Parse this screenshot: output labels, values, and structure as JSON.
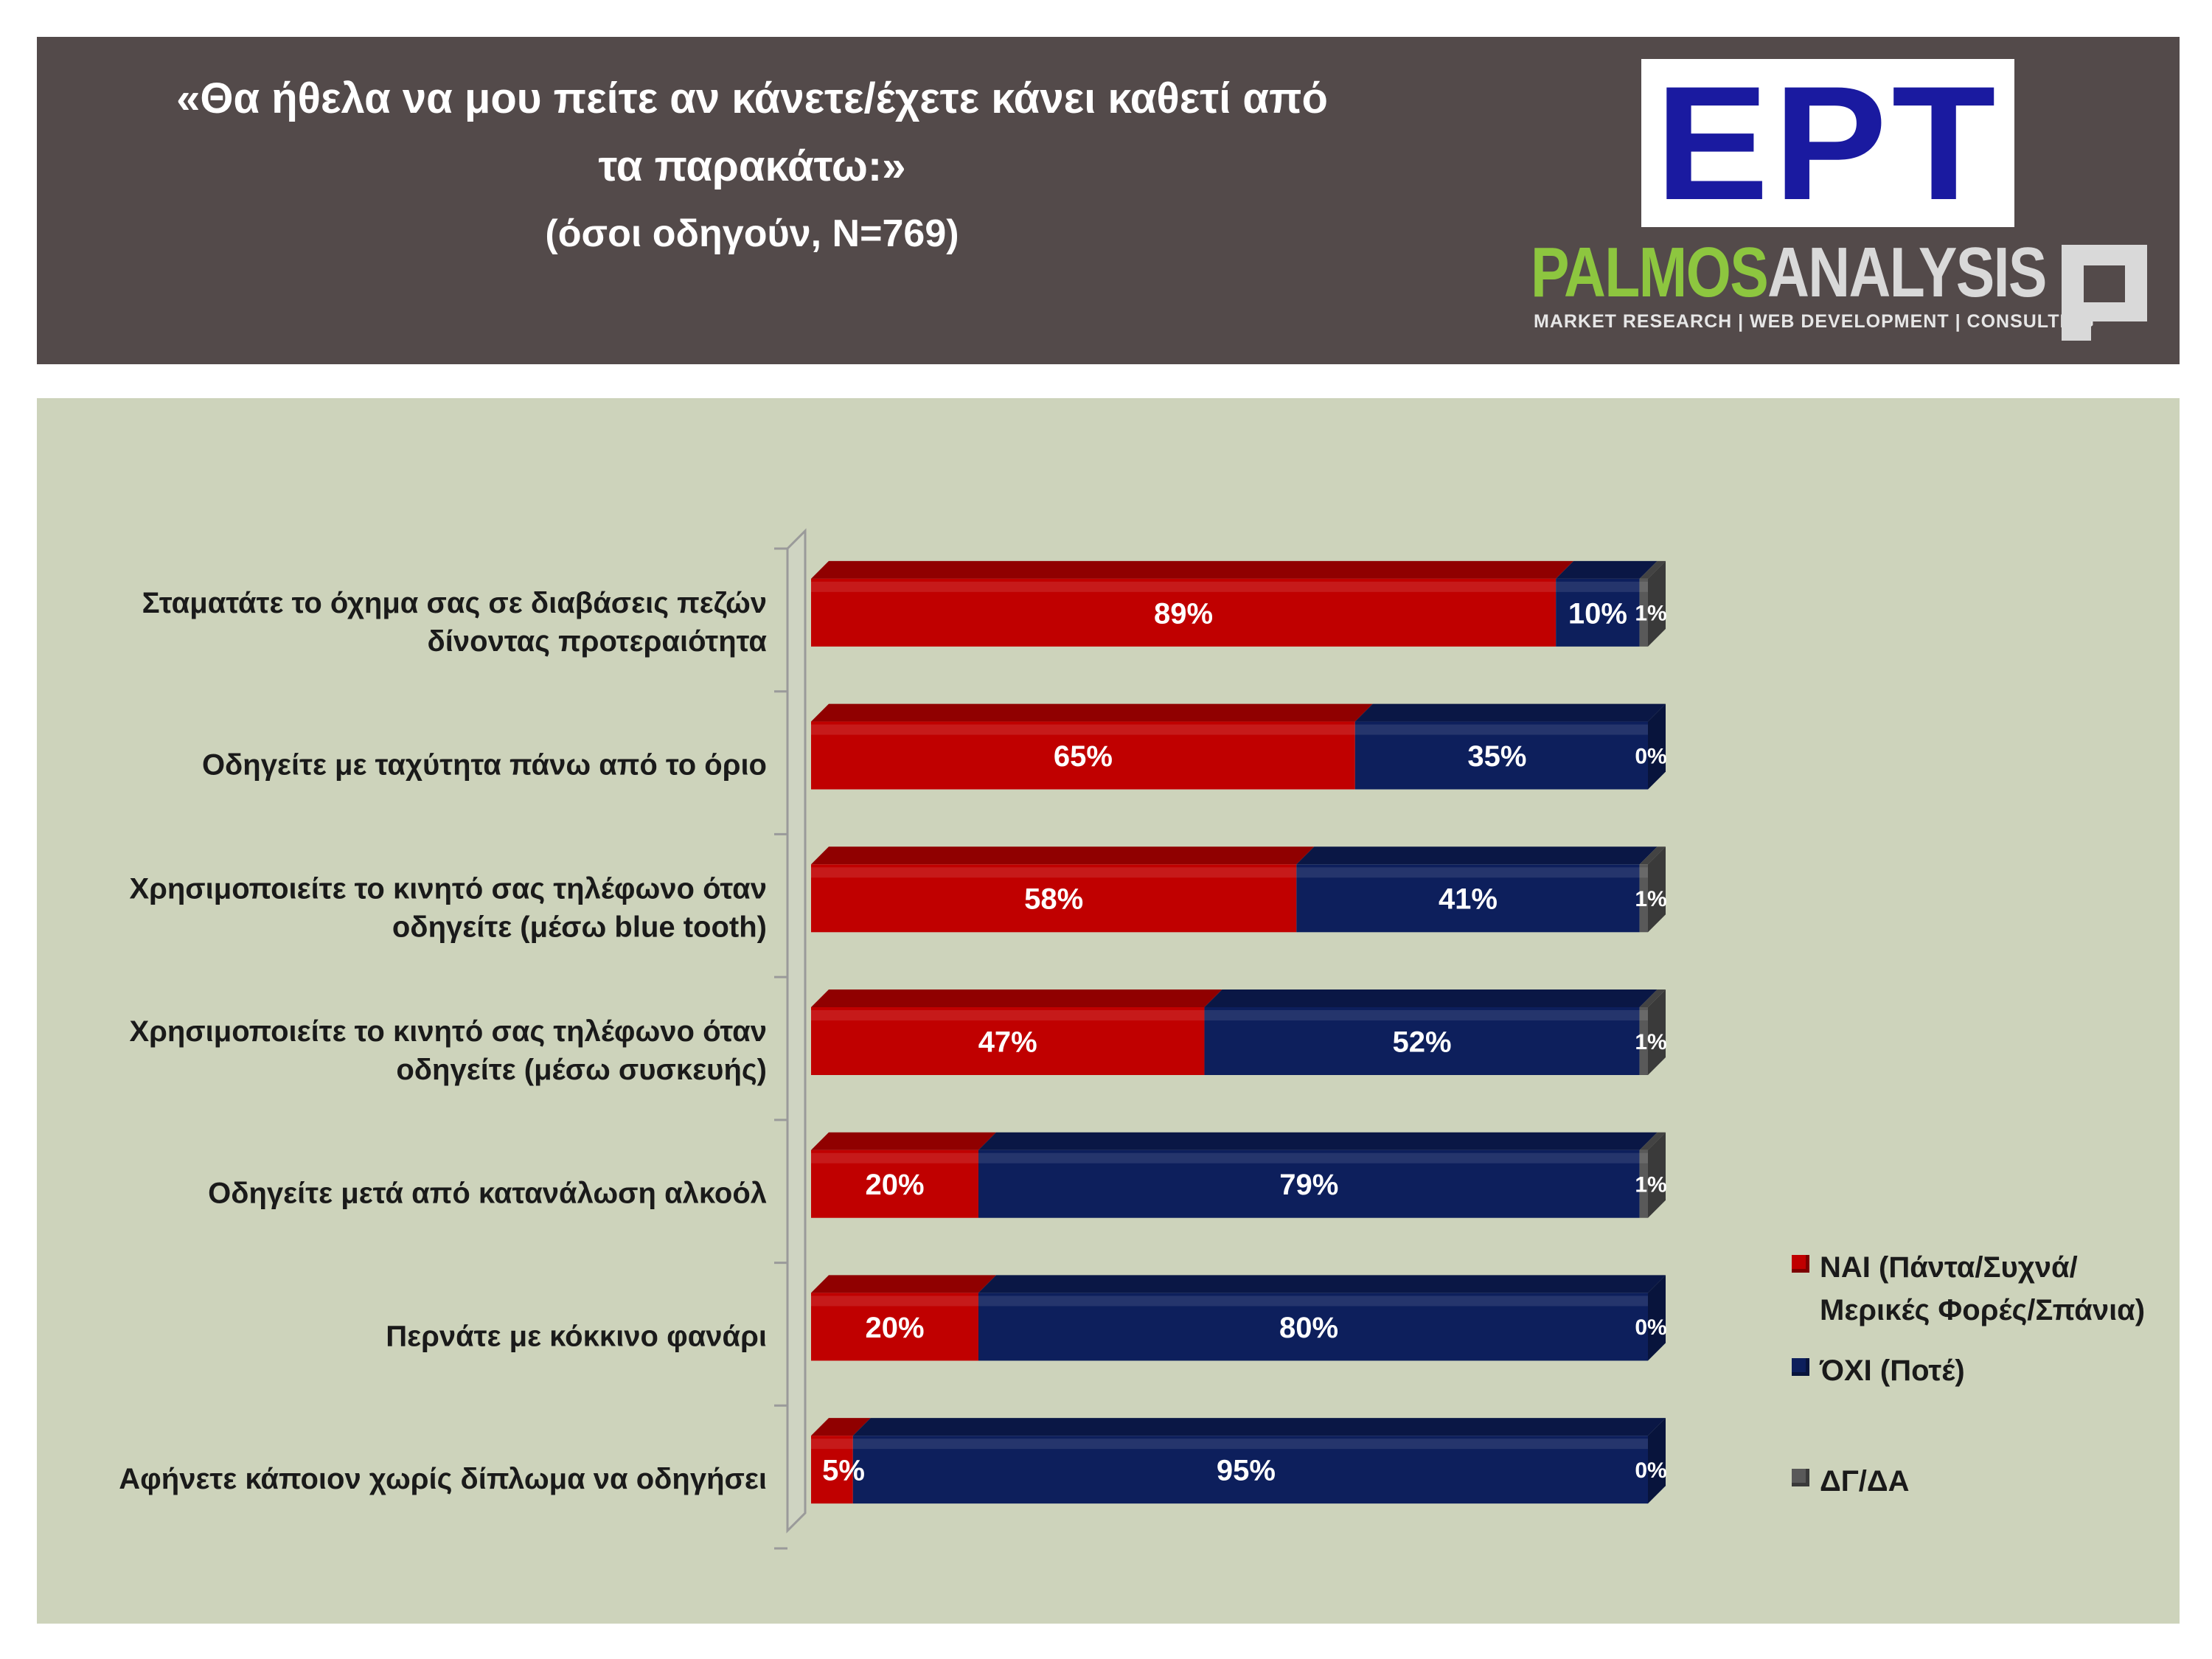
{
  "header": {
    "title_line1": "«Θα ήθελα να μου πείτε αν κάνετε/έχετε κάνει καθετί από",
    "title_line2": "τα παρακάτω:»",
    "subtitle": "(όσοι οδηγούν, Ν=769)",
    "logo_ert": "ΕΡΤ",
    "logo_palmos_part1": "PALMOS",
    "logo_palmos_part2": "ANALYSIS",
    "logo_palmos_tagline": "MARKET RESEARCH | WEB DEVELOPMENT | CONSULTING"
  },
  "colors": {
    "header_bg": "#534a4a",
    "panel_bg": "#cdd3bb",
    "yes": "#c00000",
    "no": "#0d1f5c",
    "dk": "#595959"
  },
  "chart_data": {
    "type": "bar",
    "orientation": "horizontal",
    "stacked": true,
    "percent_stacked": true,
    "categories": [
      [
        "Σταματάτε το όχημα σας σε διαβάσεις πεζών",
        "δίνοντας προτεραιότητα"
      ],
      [
        "Οδηγείτε με ταχύτητα πάνω από το όριο"
      ],
      [
        "Χρησιμοποιείτε το κινητό σας τηλέφωνο όταν",
        "οδηγείτε (μέσω blue tooth)"
      ],
      [
        "Χρησιμοποιείτε το κινητό σας τηλέφωνο όταν",
        "οδηγείτε (μέσω συσκευής)"
      ],
      [
        "Οδηγείτε μετά από κατανάλωση αλκοόλ"
      ],
      [
        "Περνάτε με κόκκινο φανάρι"
      ],
      [
        "Αφήνετε κάποιον χωρίς δίπλωμα να οδηγήσει"
      ]
    ],
    "series": [
      {
        "name": "ΝΑΙ (Πάντα/Συχνά/ Μερικές Φορές/Σπάνια)",
        "legend_lines": [
          "ΝΑΙ (Πάντα/Συχνά/",
          "Μερικές Φορές/Σπάνια)"
        ],
        "color": "#c00000",
        "values": [
          89,
          65,
          58,
          47,
          20,
          20,
          5
        ],
        "labels": [
          "89%",
          "65%",
          "58%",
          "47%",
          "20%",
          "20%",
          "5%"
        ]
      },
      {
        "name": "ΌΧΙ (Ποτέ)",
        "legend_lines": [
          "ΌΧΙ (Ποτέ)"
        ],
        "color": "#0d1f5c",
        "values": [
          10,
          35,
          41,
          52,
          79,
          80,
          95
        ],
        "labels": [
          "10%",
          "35%",
          "41%",
          "52%",
          "79%",
          "80%",
          "95%"
        ]
      },
      {
        "name": "ΔΓ/ΔΑ",
        "legend_lines": [
          "ΔΓ/ΔΑ"
        ],
        "color": "#595959",
        "values": [
          1,
          0,
          1,
          1,
          1,
          0,
          0
        ],
        "labels": [
          "1%",
          "0%",
          "1%",
          "1%",
          "1%",
          "0%",
          "0%"
        ]
      }
    ],
    "xlim": [
      0,
      100
    ],
    "legend_position": "right",
    "grid": false
  }
}
